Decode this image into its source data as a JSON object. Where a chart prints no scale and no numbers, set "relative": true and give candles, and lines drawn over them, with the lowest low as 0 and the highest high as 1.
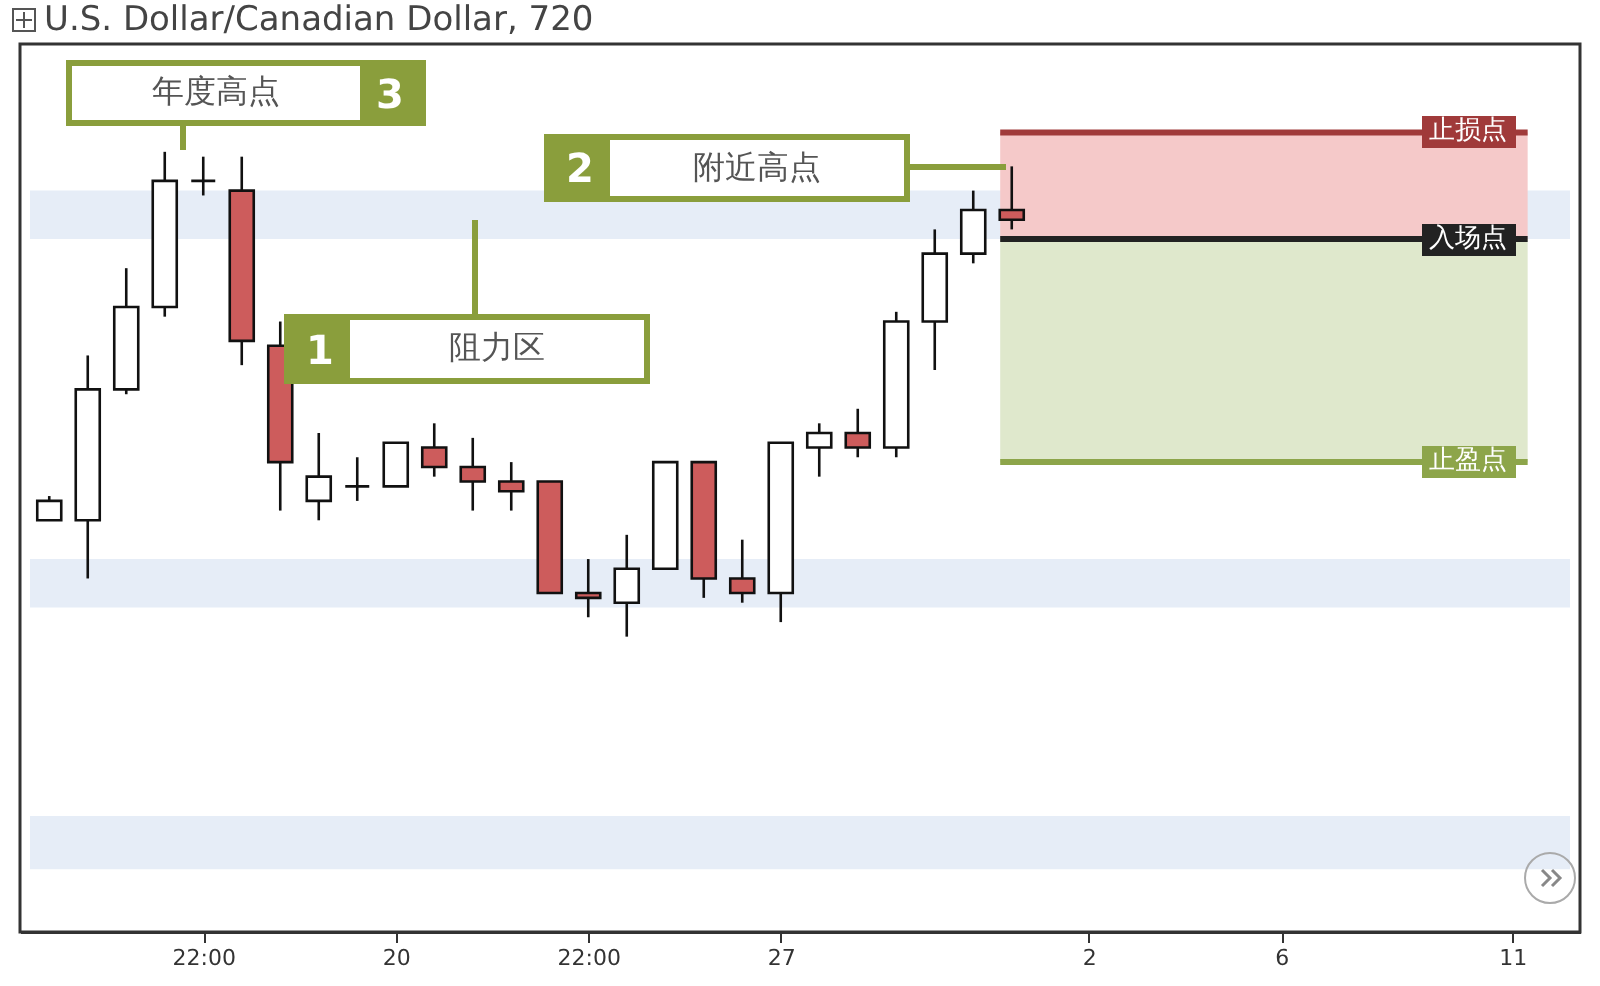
{
  "chart_data": {
    "type": "candlestick",
    "title": "U.S. Dollar/Canadian Dollar, 720",
    "relative": true,
    "categories": [
      null,
      null,
      null,
      null,
      "22:00",
      null,
      null,
      null,
      null,
      "20",
      null,
      null,
      null,
      null,
      "22:00",
      null,
      null,
      null,
      null,
      "27",
      null,
      null,
      null,
      null,
      null,
      null,
      null,
      "2",
      null,
      null,
      null,
      null,
      "6",
      null,
      null,
      null,
      null,
      null,
      "11",
      null
    ],
    "ohlc": [
      [
        0.24,
        0.29,
        0.24,
        0.28
      ],
      [
        0.24,
        0.58,
        0.12,
        0.51
      ],
      [
        0.51,
        0.76,
        0.5,
        0.68
      ],
      [
        0.68,
        1,
        0.66,
        0.94
      ],
      [
        0.94,
        0.99,
        0.91,
        0.94
      ],
      [
        0.92,
        0.99,
        0.56,
        0.61
      ],
      [
        0.6,
        0.65,
        0.26,
        0.36
      ],
      [
        0.28,
        0.42,
        0.24,
        0.33
      ],
      [
        0.31,
        0.37,
        0.28,
        0.31
      ],
      [
        0.31,
        0.4,
        0.31,
        0.4
      ],
      [
        0.39,
        0.44,
        0.33,
        0.35
      ],
      [
        0.35,
        0.41,
        0.26,
        0.32
      ],
      [
        0.32,
        0.36,
        0.26,
        0.3
      ],
      [
        0.32,
        0.32,
        0.09,
        0.09
      ],
      [
        0.09,
        0.16,
        0.04,
        0.08
      ],
      [
        0.07,
        0.21,
        0,
        0.14
      ],
      [
        0.14,
        0.36,
        0.14,
        0.36
      ],
      [
        0.36,
        0.36,
        0.08,
        0.12
      ],
      [
        0.12,
        0.2,
        0.07,
        0.09
      ],
      [
        0.09,
        0.4,
        0.03,
        0.4
      ],
      [
        0.39,
        0.44,
        0.33,
        0.42
      ],
      [
        0.42,
        0.47,
        0.37,
        0.39
      ],
      [
        0.39,
        0.67,
        0.37,
        0.65
      ],
      [
        0.65,
        0.84,
        0.55,
        0.79
      ],
      [
        0.79,
        0.92,
        0.77,
        0.88
      ],
      [
        0.88,
        0.97,
        0.84,
        0.86
      ],
      null,
      null,
      null,
      null,
      null,
      null,
      null,
      null,
      null,
      null,
      null,
      null,
      null,
      null
    ],
    "bands": [
      {
        "axis": "y",
        "from": 0.82,
        "to": 0.92,
        "color": "#e6edf7"
      },
      {
        "axis": "y",
        "from": 0.06,
        "to": 0.16,
        "color": "#e6edf7"
      },
      {
        "axis": "y",
        "from": -0.48,
        "to": -0.37,
        "color": "#e6edf7"
      },
      {
        "axis": "y",
        "from": 0.82,
        "to": 1.04,
        "color": "#f5c9c9"
      },
      {
        "axis": "y",
        "from": 0.36,
        "to": 0.82,
        "color": "#dfe8cc"
      }
    ],
    "ref_lines": [
      {
        "axis": "y",
        "value": 1.04,
        "label": "止损点",
        "color": "#a03a3a"
      },
      {
        "axis": "y",
        "value": 0.82,
        "label": "入场点",
        "color": "#222222"
      },
      {
        "axis": "y",
        "value": 0.36,
        "label": "止盈点",
        "color": "#8da54a"
      }
    ],
    "annotations": [
      "年度高点",
      "附近高点",
      "阻力区",
      "3",
      "2",
      "1"
    ],
    "grid": false
  }
}
